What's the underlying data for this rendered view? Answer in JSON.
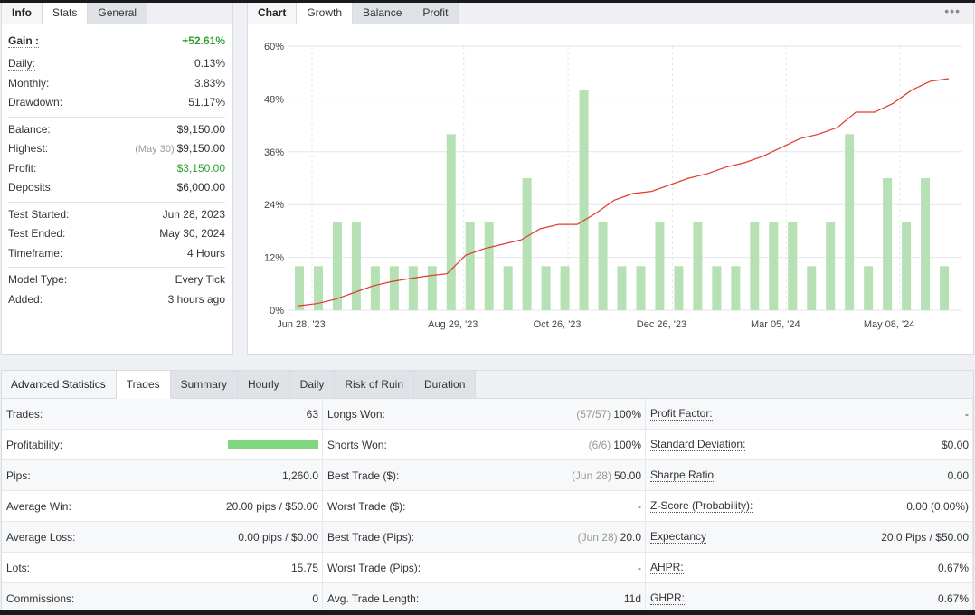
{
  "info_tabs": [
    "Info",
    "Stats",
    "General"
  ],
  "info": {
    "gain": {
      "label": "Gain :",
      "value": "+52.61%"
    },
    "group1": [
      {
        "label": "Daily:",
        "value": "0.13%"
      },
      {
        "label": "Monthly:",
        "value": "3.83%"
      },
      {
        "label": "Drawdown:",
        "value": "51.17%"
      }
    ],
    "balance": {
      "label": "Balance:",
      "value": "$9,150.00"
    },
    "highest": {
      "label": "Highest:",
      "sub": "(May 30)",
      "value": "$9,150.00"
    },
    "profit": {
      "label": "Profit:",
      "value": "$3,150.00"
    },
    "deposits": {
      "label": "Deposits:",
      "value": "$6,000.00"
    },
    "group3": [
      {
        "label": "Test Started:",
        "value": "Jun 28, 2023"
      },
      {
        "label": "Test Ended:",
        "value": "May 30, 2024"
      },
      {
        "label": "Timeframe:",
        "value": "4 Hours"
      }
    ],
    "group4": [
      {
        "label": "Model Type:",
        "value": "Every Tick"
      },
      {
        "label": "Added:",
        "value": "3 hours ago"
      }
    ]
  },
  "chart_tabs": [
    "Chart",
    "Growth",
    "Balance",
    "Profit"
  ],
  "chart_menu_icon": "more-dots-icon",
  "chart_data": {
    "type": "bar+line",
    "y_ticks": [
      "60%",
      "48%",
      "36%",
      "24%",
      "12%",
      "0%"
    ],
    "ylim": [
      0,
      60
    ],
    "x_tick_labels": [
      "Jun 28, '23",
      "Aug 29, '23",
      "Oct 26, '23",
      "Dec 26, '23",
      "Mar 05, '24",
      "May 08, '24"
    ],
    "bars": [
      10,
      10,
      20,
      20,
      10,
      10,
      10,
      10,
      40,
      20,
      20,
      10,
      30,
      10,
      10,
      50,
      20,
      10,
      10,
      20,
      10,
      20,
      10,
      10,
      20,
      20,
      20,
      10,
      20,
      40,
      10,
      30,
      20,
      30,
      10
    ],
    "growth_line": [
      1,
      1.5,
      2.5,
      4,
      5.5,
      6.5,
      7.2,
      7.8,
      8.3,
      12.5,
      14,
      15,
      16,
      18.5,
      19.5,
      19.5,
      22,
      25,
      26.5,
      27,
      28.5,
      30,
      31,
      32.5,
      33.5,
      35,
      37,
      39,
      40,
      41.5,
      45,
      45,
      47,
      50,
      52,
      52.6
    ],
    "colors": {
      "bar": "#b5e1b5",
      "line": "#e03a2e",
      "grid": "#e4e6ea"
    }
  },
  "adv_tabs": [
    "Advanced Statistics",
    "Trades",
    "Summary",
    "Hourly",
    "Daily",
    "Risk of Ruin",
    "Duration"
  ],
  "adv": {
    "col1": [
      {
        "label": "Trades:",
        "value": "63"
      },
      {
        "label": "Profitability:",
        "value": "",
        "bar": 1.0
      },
      {
        "label": "Pips:",
        "value": "1,260.0"
      },
      {
        "label": "Average Win:",
        "value": "20.00 pips / $50.00"
      },
      {
        "label": "Average Loss:",
        "value": "0.00 pips / $0.00"
      },
      {
        "label": "Lots:",
        "value": "15.75"
      },
      {
        "label": "Commissions:",
        "value": "0"
      }
    ],
    "col2": [
      {
        "label": "Longs Won:",
        "sub": "(57/57)",
        "value": "100%"
      },
      {
        "label": "Shorts Won:",
        "sub": "(6/6)",
        "value": "100%"
      },
      {
        "label": "Best Trade ($):",
        "sub": "(Jun 28)",
        "value": "50.00"
      },
      {
        "label": "Worst Trade ($):",
        "value": "-"
      },
      {
        "label": "Best Trade (Pips):",
        "sub": "(Jun 28)",
        "value": "20.0"
      },
      {
        "label": "Worst Trade (Pips):",
        "value": "-"
      },
      {
        "label": "Avg. Trade Length:",
        "value": "11d"
      }
    ],
    "col3": [
      {
        "label": "Profit Factor:",
        "value": "-"
      },
      {
        "label": "Standard Deviation:",
        "value": "$0.00"
      },
      {
        "label": "Sharpe Ratio",
        "value": "0.00"
      },
      {
        "label": "Z-Score (Probability):",
        "value": "0.00 (0.00%)"
      },
      {
        "label": "Expectancy",
        "value": "20.0 Pips / $50.00"
      },
      {
        "label": "AHPR:",
        "value": "0.67%"
      },
      {
        "label": "GHPR:",
        "value": "0.67%"
      }
    ]
  }
}
